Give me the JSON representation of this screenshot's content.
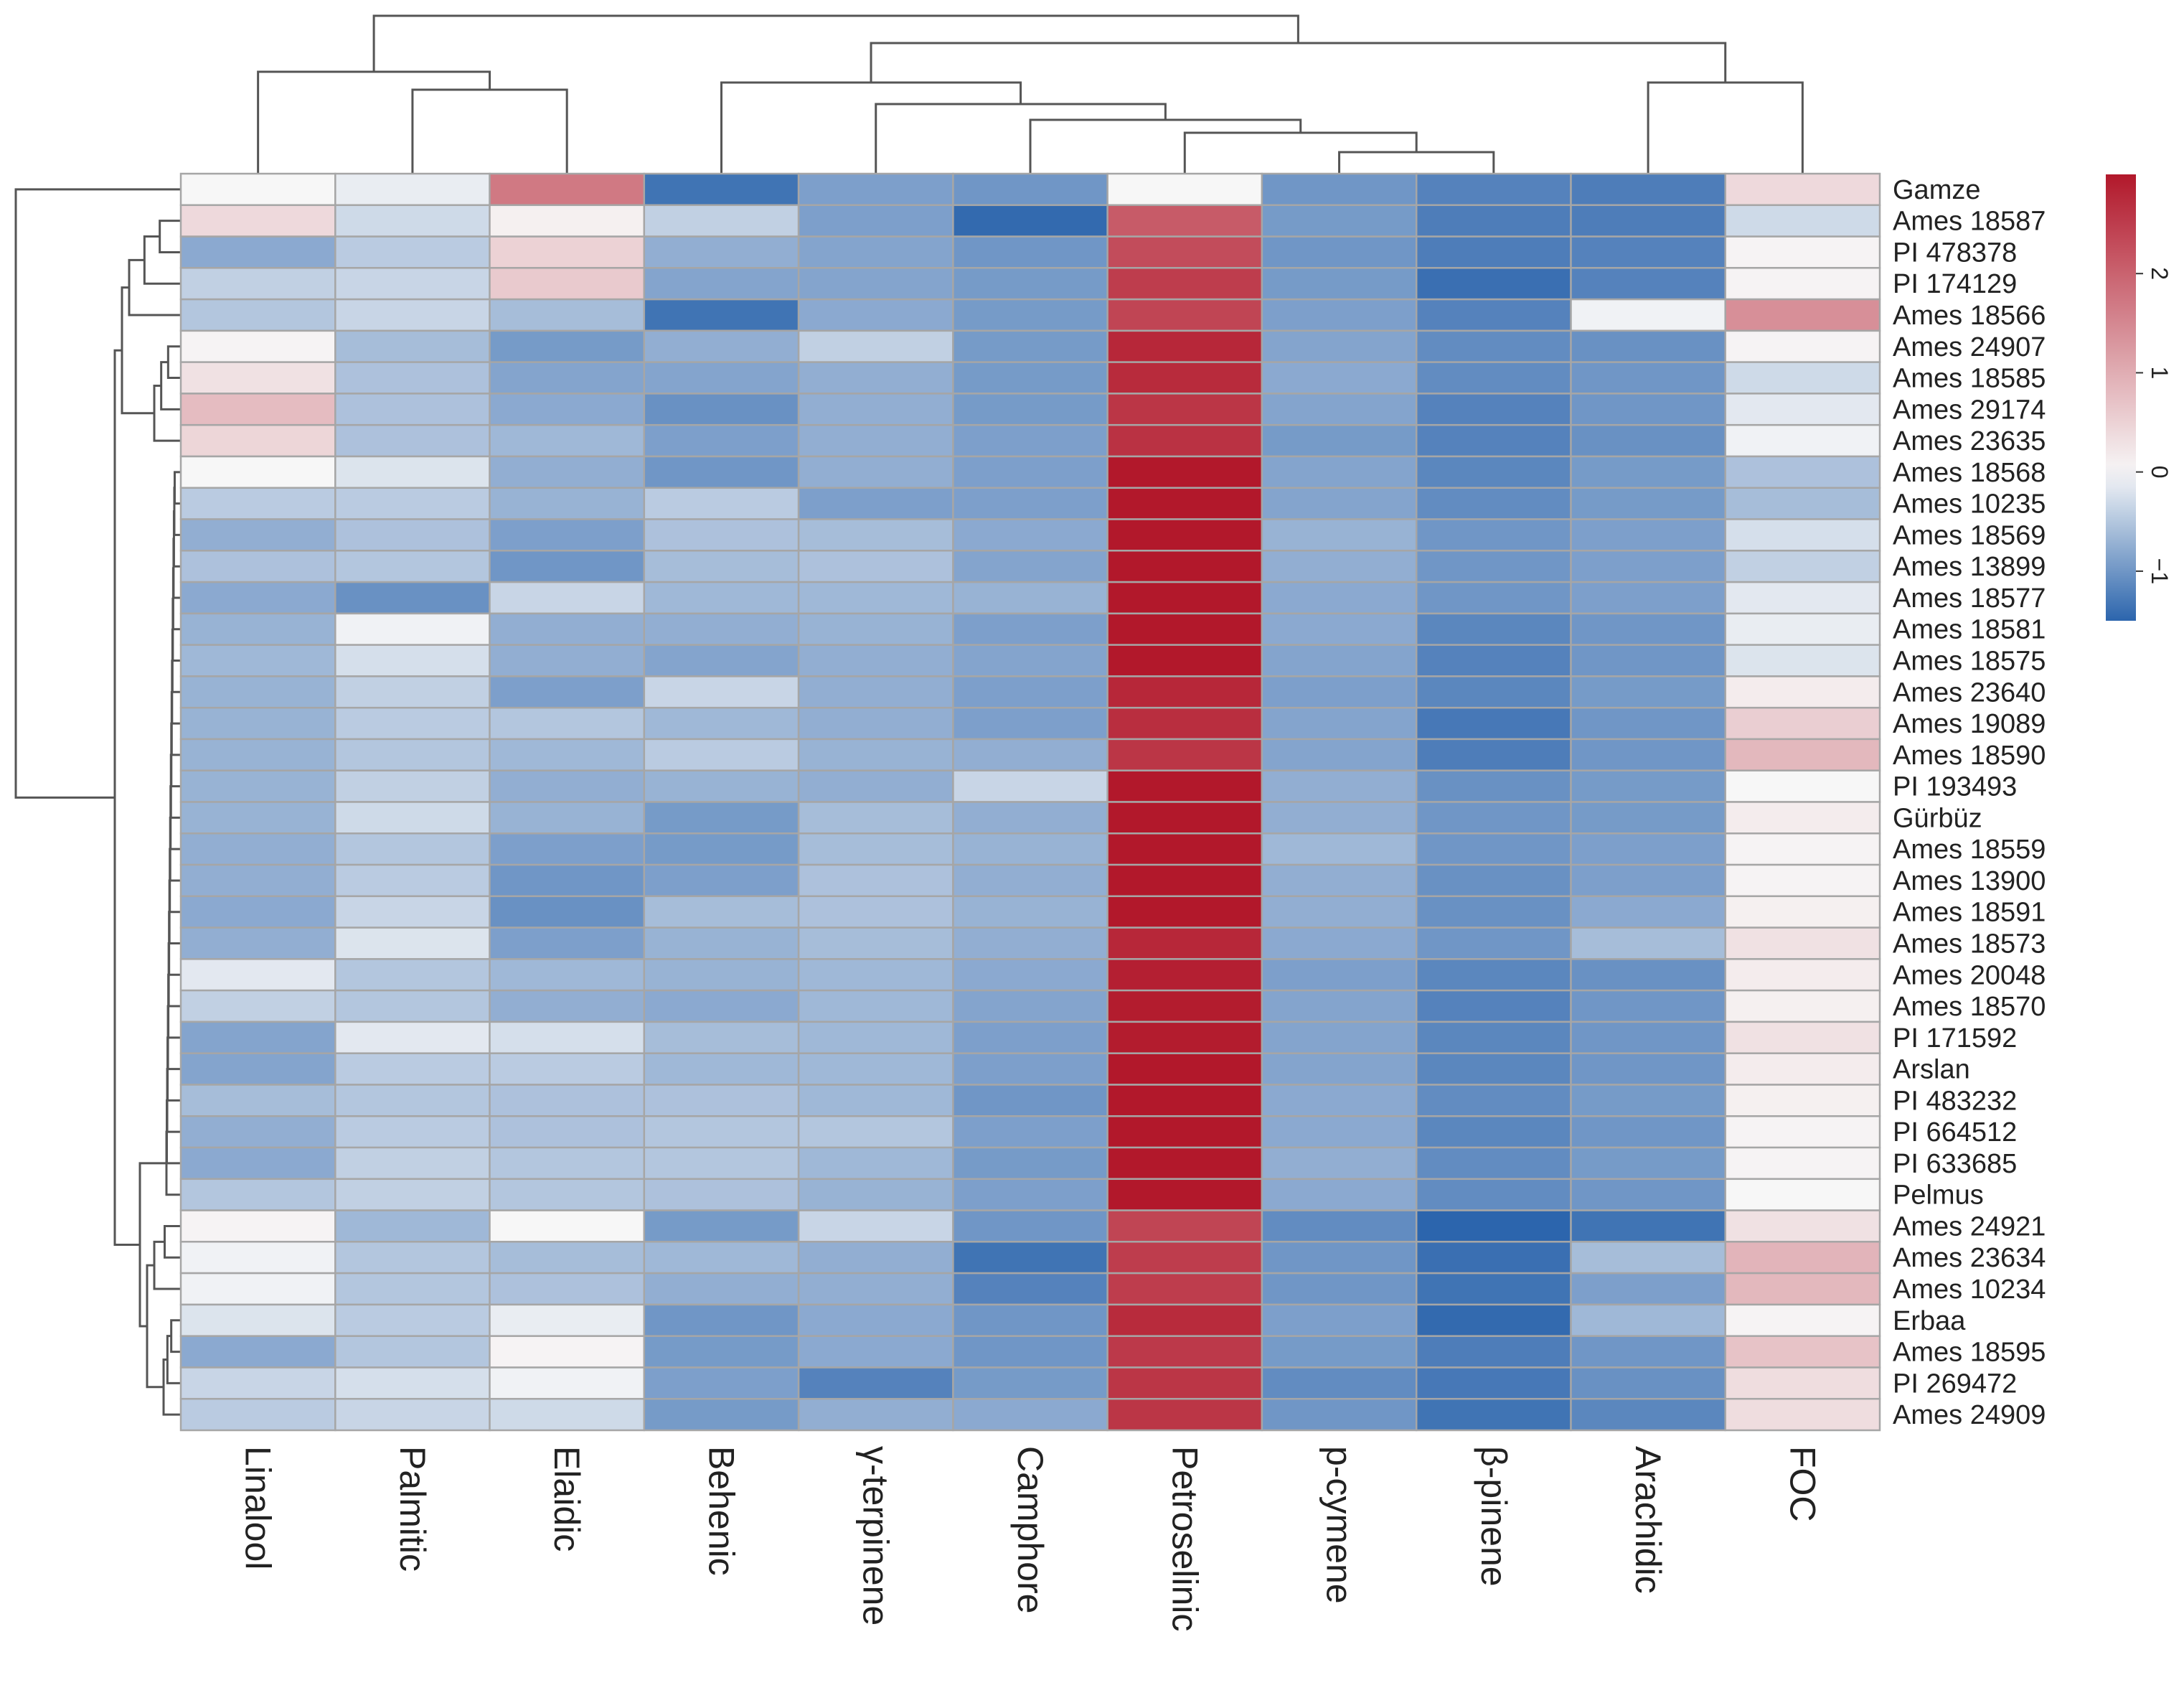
{
  "chart_data": {
    "type": "heatmap",
    "title": "",
    "clustering": "rows and columns (dendrograms shown)",
    "colormap": {
      "low": "#2c65ad",
      "mid": "#f7f7f7",
      "high": "#b2182b"
    },
    "legend": {
      "position": "right",
      "ticks": [
        -1,
        0,
        1,
        2
      ],
      "range": [
        -1.5,
        3.0
      ]
    },
    "columns": [
      "Linalool",
      "Palmitic",
      "Elaidic",
      "Behenic",
      "γ-terpinene",
      "Camphore",
      "Petroselinic",
      "p-cymene",
      "β-pinene",
      "Arachidic",
      "FOC"
    ],
    "rows": [
      "Gamze",
      "Ames 18587",
      "PI 478378",
      "PI 174129",
      "Ames 18566",
      "Ames 24907",
      "Ames 18585",
      "Ames 29174",
      "Ames 23635",
      "Ames 18568",
      "Ames 10235",
      "Ames 18569",
      "Ames 13899",
      "Ames 18577",
      "Ames 18581",
      "Ames 18575",
      "Ames 23640",
      "Ames 19089",
      "Ames 18590",
      "PI 193493",
      "Gürbüz",
      "Ames 18559",
      "Ames 13900",
      "Ames 18591",
      "Ames 18573",
      "Ames 20048",
      "Ames 18570",
      "PI 171592",
      "Arslan",
      "PI 483232",
      "PI 664512",
      "PI 633685",
      "Pelmus",
      "Ames 24921",
      "Ames 23634",
      "Ames 10234",
      "Erbaa",
      "Ames 18595",
      "PI 269472",
      "Ames 24909"
    ],
    "values": [
      [
        0.0,
        -0.1,
        1.7,
        -1.35,
        -0.9,
        -1.0,
        0.0,
        -1.0,
        -1.2,
        -1.25,
        0.4
      ],
      [
        0.4,
        -0.3,
        0.1,
        -0.4,
        -0.9,
        -1.45,
        2.1,
        -0.95,
        -1.25,
        -1.25,
        -0.3
      ],
      [
        -0.8,
        -0.45,
        0.5,
        -0.75,
        -0.85,
        -1.0,
        2.3,
        -1.0,
        -1.25,
        -1.2,
        0.05
      ],
      [
        -0.4,
        -0.35,
        0.6,
        -0.85,
        -0.85,
        -0.95,
        2.5,
        -0.95,
        -1.4,
        -1.2,
        0.05
      ],
      [
        -0.5,
        -0.35,
        -0.6,
        -1.35,
        -0.8,
        -0.95,
        2.4,
        -0.9,
        -1.2,
        -0.05,
        1.4
      ],
      [
        0.05,
        -0.6,
        -0.95,
        -0.75,
        -0.4,
        -0.95,
        2.8,
        -0.85,
        -1.1,
        -1.05,
        0.05
      ],
      [
        0.3,
        -0.55,
        -0.85,
        -0.85,
        -0.75,
        -0.95,
        2.75,
        -0.8,
        -1.1,
        -1.0,
        -0.3
      ],
      [
        0.8,
        -0.55,
        -0.8,
        -1.05,
        -0.75,
        -0.95,
        2.6,
        -0.85,
        -1.2,
        -1.0,
        -0.15
      ],
      [
        0.45,
        -0.55,
        -0.65,
        -0.9,
        -0.75,
        -0.9,
        2.65,
        -0.95,
        -1.2,
        -1.05,
        -0.05
      ],
      [
        0.0,
        -0.2,
        -0.75,
        -1.0,
        -0.75,
        -0.9,
        3.0,
        -0.85,
        -1.15,
        -0.95,
        -0.55
      ],
      [
        -0.45,
        -0.45,
        -0.7,
        -0.45,
        -0.9,
        -0.9,
        3.1,
        -0.85,
        -1.1,
        -0.95,
        -0.6
      ],
      [
        -0.75,
        -0.55,
        -0.9,
        -0.55,
        -0.6,
        -0.8,
        3.2,
        -0.7,
        -1.0,
        -0.9,
        -0.25
      ],
      [
        -0.55,
        -0.5,
        -1.0,
        -0.6,
        -0.55,
        -0.85,
        3.15,
        -0.75,
        -1.0,
        -0.9,
        -0.4
      ],
      [
        -0.8,
        -1.05,
        -0.35,
        -0.65,
        -0.65,
        -0.7,
        3.1,
        -0.8,
        -1.0,
        -0.9,
        -0.15
      ],
      [
        -0.7,
        -0.05,
        -0.75,
        -0.75,
        -0.7,
        -0.9,
        3.0,
        -0.8,
        -1.15,
        -1.0,
        -0.1
      ],
      [
        -0.65,
        -0.25,
        -0.75,
        -0.85,
        -0.75,
        -0.85,
        3.05,
        -0.85,
        -1.2,
        -1.0,
        -0.2
      ],
      [
        -0.7,
        -0.4,
        -0.9,
        -0.35,
        -0.75,
        -0.9,
        2.8,
        -0.9,
        -1.15,
        -0.95,
        0.15
      ],
      [
        -0.7,
        -0.45,
        -0.5,
        -0.65,
        -0.75,
        -0.9,
        2.7,
        -0.85,
        -1.3,
        -1.0,
        0.55
      ],
      [
        -0.7,
        -0.5,
        -0.65,
        -0.45,
        -0.7,
        -0.75,
        2.6,
        -0.85,
        -1.25,
        -1.0,
        0.85
      ],
      [
        -0.7,
        -0.4,
        -0.75,
        -0.7,
        -0.75,
        -0.35,
        3.1,
        -0.75,
        -1.05,
        -0.95,
        0.0
      ],
      [
        -0.7,
        -0.3,
        -0.7,
        -0.95,
        -0.6,
        -0.75,
        3.0,
        -0.75,
        -1.0,
        -0.95,
        0.15
      ],
      [
        -0.75,
        -0.5,
        -0.9,
        -0.95,
        -0.6,
        -0.7,
        3.05,
        -0.65,
        -1.0,
        -0.9,
        0.05
      ],
      [
        -0.75,
        -0.45,
        -1.0,
        -0.9,
        -0.55,
        -0.75,
        3.1,
        -0.75,
        -1.05,
        -0.9,
        0.05
      ],
      [
        -0.8,
        -0.35,
        -1.05,
        -0.6,
        -0.55,
        -0.7,
        3.0,
        -0.75,
        -1.05,
        -0.8,
        0.1
      ],
      [
        -0.75,
        -0.2,
        -0.9,
        -0.7,
        -0.6,
        -0.75,
        2.8,
        -0.8,
        -1.0,
        -0.6,
        0.3
      ],
      [
        -0.15,
        -0.5,
        -0.65,
        -0.7,
        -0.65,
        -0.8,
        2.9,
        -0.9,
        -1.15,
        -1.05,
        0.15
      ],
      [
        -0.4,
        -0.5,
        -0.75,
        -0.8,
        -0.65,
        -0.85,
        2.95,
        -0.85,
        -1.2,
        -1.0,
        0.1
      ],
      [
        -0.85,
        -0.15,
        -0.25,
        -0.6,
        -0.65,
        -0.9,
        2.95,
        -0.85,
        -1.15,
        -1.0,
        0.3
      ],
      [
        -0.85,
        -0.45,
        -0.45,
        -0.65,
        -0.65,
        -0.9,
        3.0,
        -0.85,
        -1.15,
        -1.0,
        0.15
      ],
      [
        -0.6,
        -0.5,
        -0.55,
        -0.55,
        -0.65,
        -1.0,
        3.1,
        -0.8,
        -1.1,
        -0.95,
        0.1
      ],
      [
        -0.75,
        -0.45,
        -0.55,
        -0.5,
        -0.5,
        -0.9,
        3.15,
        -0.8,
        -1.15,
        -1.0,
        0.05
      ],
      [
        -0.8,
        -0.4,
        -0.5,
        -0.5,
        -0.65,
        -0.95,
        3.15,
        -0.75,
        -1.1,
        -0.95,
        0.05
      ],
      [
        -0.5,
        -0.4,
        -0.5,
        -0.55,
        -0.7,
        -0.9,
        3.05,
        -0.8,
        -1.1,
        -1.0,
        0.0
      ],
      [
        0.05,
        -0.65,
        0.0,
        -0.95,
        -0.35,
        -1.0,
        2.4,
        -1.1,
        -1.5,
        -1.35,
        0.3
      ],
      [
        -0.05,
        -0.5,
        -0.6,
        -0.65,
        -0.75,
        -1.35,
        2.5,
        -1.0,
        -1.4,
        -0.6,
        0.9
      ],
      [
        -0.05,
        -0.5,
        -0.55,
        -0.75,
        -0.75,
        -1.2,
        2.5,
        -1.0,
        -1.35,
        -0.9,
        0.85
      ],
      [
        -0.2,
        -0.45,
        -0.1,
        -1.0,
        -0.8,
        -1.0,
        2.75,
        -0.9,
        -1.45,
        -0.65,
        0.05
      ],
      [
        -0.8,
        -0.5,
        0.05,
        -0.95,
        -0.8,
        -1.0,
        2.55,
        -0.95,
        -1.25,
        -1.0,
        0.7
      ],
      [
        -0.35,
        -0.25,
        -0.05,
        -0.9,
        -1.2,
        -0.95,
        2.6,
        -1.1,
        -1.3,
        -1.05,
        0.35
      ],
      [
        -0.45,
        -0.35,
        -0.3,
        -0.95,
        -0.75,
        -0.8,
        2.6,
        -1.0,
        -1.35,
        -1.15,
        0.35
      ]
    ]
  }
}
